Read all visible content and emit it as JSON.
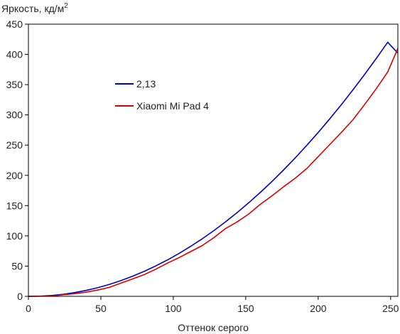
{
  "chart_data": {
    "type": "line",
    "title": "",
    "ylabel": "Яркость, кд/м",
    "ylabel_sup": "2",
    "xlabel": "Оттенок серого",
    "xlim": [
      0,
      255
    ],
    "ylim": [
      0,
      450
    ],
    "x_ticks": [
      0,
      50,
      100,
      150,
      200,
      250
    ],
    "y_ticks": [
      0,
      50,
      100,
      150,
      200,
      250,
      300,
      350,
      400,
      450
    ],
    "grid": false,
    "legend_position": "upper-left",
    "series": [
      {
        "name": "2,13",
        "color": "#0000cc",
        "x": [
          0,
          8,
          16,
          24,
          32,
          40,
          48,
          56,
          64,
          72,
          80,
          88,
          96,
          104,
          112,
          120,
          128,
          136,
          144,
          152,
          160,
          168,
          176,
          184,
          192,
          200,
          208,
          216,
          224,
          232,
          240,
          248,
          255
        ],
        "y": [
          0,
          0.3,
          1.4,
          3.4,
          6.2,
          9.9,
          14.4,
          19.8,
          26.1,
          33.3,
          41.4,
          50.4,
          60.2,
          71.0,
          82.7,
          95.2,
          108.7,
          123.1,
          138.4,
          154.6,
          171.7,
          189.7,
          208.7,
          228.5,
          249.3,
          270.9,
          293.5,
          317.0,
          341.4,
          366.7,
          393.0,
          420.1,
          402.0
        ]
      },
      {
        "name": "Xiaomi Mi Pad 4",
        "color": "#dd0000",
        "x": [
          0,
          16,
          24,
          32,
          40,
          48,
          56,
          64,
          72,
          80,
          88,
          96,
          104,
          112,
          120,
          128,
          136,
          144,
          152,
          160,
          168,
          176,
          184,
          192,
          200,
          208,
          216,
          224,
          232,
          240,
          248,
          255
        ],
        "y": [
          0,
          0.5,
          2.5,
          4.5,
          7,
          10.5,
          15,
          22,
          29,
          36,
          45,
          55,
          64,
          74,
          84,
          97,
          112,
          123,
          136,
          152,
          166,
          181,
          195,
          211,
          231,
          251,
          271,
          292,
          317,
          343,
          371,
          410
        ]
      }
    ]
  }
}
